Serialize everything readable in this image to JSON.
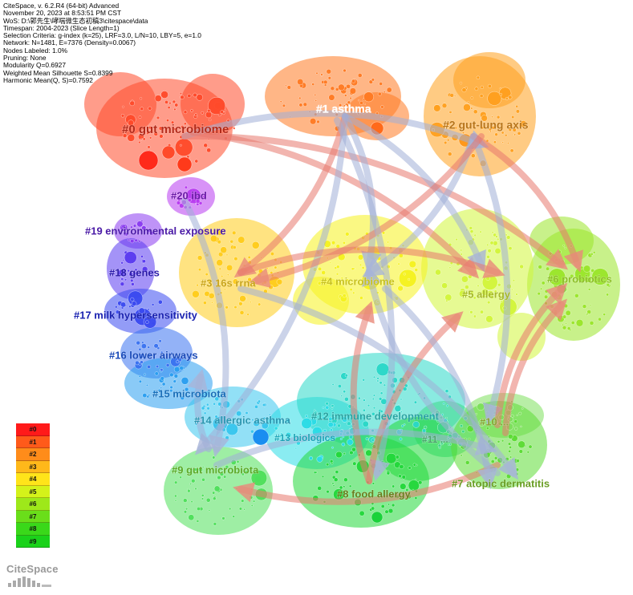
{
  "info": [
    "CiteSpace, v. 6.2.R4 (64-bit) Advanced",
    "November 20, 2023 at 8:53:51 PM CST",
    "WoS: D:\\郭先生\\哮喘微生态初稿3\\citespace\\data",
    "Timespan: 2004-2023 (Slice Length=1)",
    "Selection Criteria: g-index (k=25), LRF=3.0, L/N=10, LBY=5, e=1.0",
    "Network: N=1481, E=7376 (Density=0.0067)",
    "Nodes Labeled: 1.0%",
    "Pruning: None",
    "Modularity Q=0.6927",
    "Weighted Mean Silhouette S=0.8399",
    "Harmonic Mean(Q, S)=0.7592"
  ],
  "clusters": [
    {
      "id": "0",
      "label": "#0 gut microbiome",
      "color": "#ff4a2a",
      "label_color": "#b32a1a"
    },
    {
      "id": "1",
      "label": "#1 asthma",
      "color": "#ff7a22",
      "label_color": "#ffffff"
    },
    {
      "id": "2",
      "label": "#2 gut-lung axis",
      "color": "#ffa01e",
      "label_color": "#b8751a"
    },
    {
      "id": "3",
      "label": "#3 16s rrna",
      "color": "#ffcc1a",
      "label_color": "#c9a51a"
    },
    {
      "id": "4",
      "label": "#4 microbiome",
      "color": "#f5f21e",
      "label_color": "#c8c21e"
    },
    {
      "id": "5",
      "label": "#5 allergy",
      "color": "#d2f53a",
      "label_color": "#a6b82a"
    },
    {
      "id": "6",
      "label": "#6 probiotics",
      "color": "#9ae62a",
      "label_color": "#8cbf26"
    },
    {
      "id": "7",
      "label": "#7 atopic dermatitis",
      "color": "#5cdc34",
      "label_color": "#6a9e24"
    },
    {
      "id": "8",
      "label": "#8 food allergy",
      "color": "#22d83a",
      "label_color": "#6a7e1e"
    },
    {
      "id": "9",
      "label": "#9 gut microbiota",
      "color": "#4ee05a",
      "label_color": "#5caa28"
    },
    {
      "id": "10",
      "label": "#10 ...",
      "color": "#7ee05c",
      "label_color": "#8aa236"
    },
    {
      "id": "11",
      "label": "#11 ...",
      "color": "#3ed888",
      "label_color": "#4ea26e"
    },
    {
      "id": "12",
      "label": "#12 immune development",
      "color": "#2ad8c8",
      "label_color": "#2aa4a2"
    },
    {
      "id": "13",
      "label": "#13 biologics",
      "color": "#2adce6",
      "label_color": "#1aa4b6"
    },
    {
      "id": "14",
      "label": "#14 allergic asthma",
      "color": "#38c6ee",
      "label_color": "#2a96b0"
    },
    {
      "id": "15",
      "label": "#15 microbiota",
      "color": "#2a9ef0",
      "label_color": "#1a6eb8"
    },
    {
      "id": "16",
      "label": "#16 lower airways",
      "color": "#3a72f0",
      "label_color": "#1a4ab8"
    },
    {
      "id": "17",
      "label": "#17 milk hypersensitivity",
      "color": "#3a4af0",
      "label_color": "#1a22b0"
    },
    {
      "id": "18",
      "label": "#18 genes",
      "color": "#5a3af0",
      "label_color": "#2a1aa8"
    },
    {
      "id": "19",
      "label": "#19 environmental exposure",
      "color": "#8a3af0",
      "label_color": "#4a1aa6"
    },
    {
      "id": "20",
      "label": "#20 ibd",
      "color": "#b83af0",
      "label_color": "#6a1aa6"
    }
  ],
  "legend": [
    "#0",
    "#1",
    "#2",
    "#3",
    "#4",
    "#5",
    "#6",
    "#7",
    "#8",
    "#9"
  ],
  "legend_colors": [
    "#ff1a1a",
    "#ff5a1a",
    "#ff8c1a",
    "#ffb81a",
    "#ffe41a",
    "#d4f21a",
    "#9ee81a",
    "#6ade1a",
    "#3ad81a",
    "#1ad21a"
  ],
  "logo": {
    "text": "CiteSpace"
  }
}
